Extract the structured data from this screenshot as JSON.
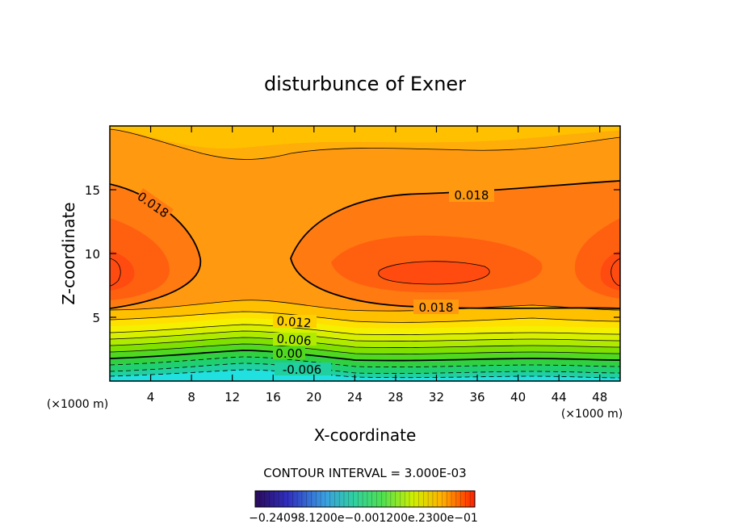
{
  "chart_data": {
    "type": "contour",
    "title": "disturbunce of Exner",
    "xlabel": "X-coordinate",
    "ylabel": "Z-coordinate",
    "x_unit": "(×1000 m)",
    "y_unit": "(×1000 m)",
    "xlim": [
      0,
      50
    ],
    "ylim": [
      0,
      20
    ],
    "x_ticks": [
      "4",
      "8",
      "12",
      "16",
      "20",
      "24",
      "28",
      "32",
      "36",
      "40",
      "44",
      "48"
    ],
    "y_ticks": [
      "5",
      "10",
      "15"
    ],
    "contour_interval": "CONTOUR INTERVAL = 3.000E-03",
    "contour_labels": [
      "0.018",
      "0.018",
      "0.018",
      "0.012",
      "0.006",
      "0.00",
      "-0.006"
    ],
    "colorbar_labels": "−0.24098.1200e−0.001200e.2300e−01",
    "value_range": [
      -0.024,
      0.023
    ]
  }
}
